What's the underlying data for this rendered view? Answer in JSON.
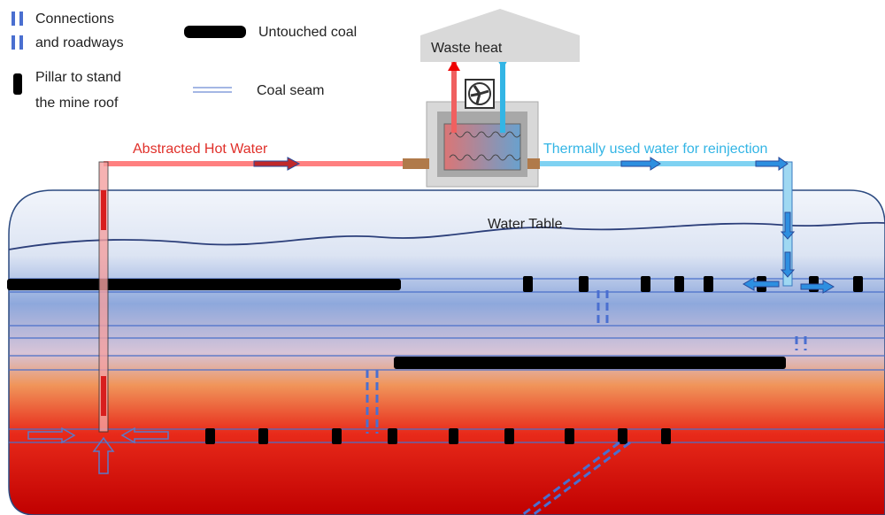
{
  "legend": {
    "connections": [
      "Connections",
      "and roadways"
    ],
    "untouched_coal": "Untouched coal",
    "pillar": [
      "Pillar to stand",
      "the mine roof"
    ],
    "coal_seam": "Coal seam"
  },
  "labels": {
    "waste_heat": "Waste heat",
    "hot_water": "Abstracted Hot Water",
    "reinjection": "Thermally used water for reinjection",
    "water_table": "Water Table"
  }
}
